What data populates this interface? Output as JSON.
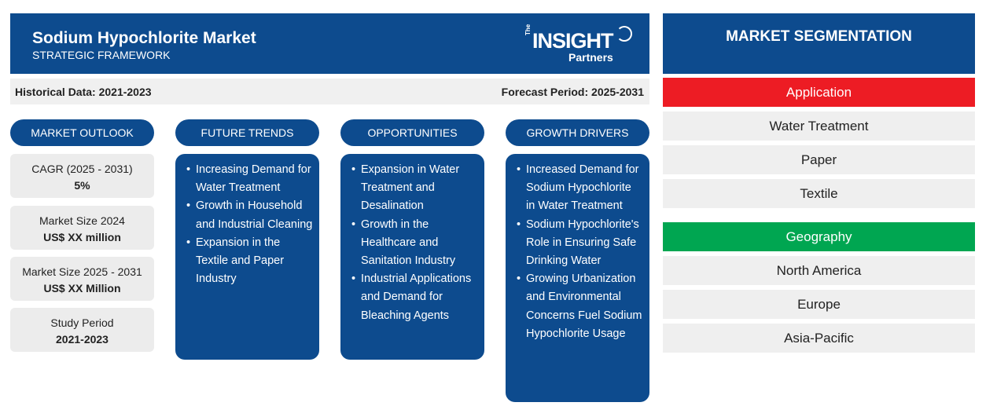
{
  "header": {
    "title": "Sodium Hypochlorite Market",
    "subtitle": "STRATEGIC FRAMEWORK",
    "logo": {
      "the": "The",
      "insight": "INSIGHT",
      "partners": "Partners"
    }
  },
  "databar": {
    "historical": "Historical Data: 2021-2023",
    "forecast": "Forecast Period: 2025-2031"
  },
  "columns": {
    "market_outlook": "MARKET OUTLOOK",
    "future_trends": "FUTURE TRENDS",
    "opportunities": "OPPORTUNITIES",
    "growth_drivers": "GROWTH DRIVERS"
  },
  "outlook": [
    {
      "label": "CAGR (2025 - 2031)",
      "value": "5%"
    },
    {
      "label": "Market Size 2024",
      "value": "US$ XX million"
    },
    {
      "label": "Market Size 2025 - 2031",
      "value": "US$ XX Million"
    },
    {
      "label": "Study Period",
      "value": "2021-2023"
    }
  ],
  "future_trends": [
    "Increasing Demand for Water Treatment",
    "Growth in Household and Industrial Cleaning",
    "Expansion in the Textile and Paper Industry"
  ],
  "opportunities": [
    "Expansion in Water Treatment and Desalination",
    "Growth in the Healthcare and Sanitation Industry",
    "Industrial Applications and Demand for Bleaching Agents"
  ],
  "growth_drivers": [
    "Increased Demand for Sodium Hypochlorite in Water Treatment",
    "Sodium Hypochlorite's Role in Ensuring Safe Drinking Water",
    "Growing Urbanization and Environmental Concerns Fuel Sodium Hypochlorite Usage"
  ],
  "segmentation": {
    "title": "MARKET SEGMENTATION",
    "application": {
      "label": "Application",
      "color": "#ed1c24",
      "items": [
        "Water Treatment",
        "Paper",
        "Textile"
      ]
    },
    "geography": {
      "label": "Geography",
      "color": "#00a651",
      "items": [
        "North America",
        "Europe",
        "Asia-Pacific"
      ]
    }
  }
}
